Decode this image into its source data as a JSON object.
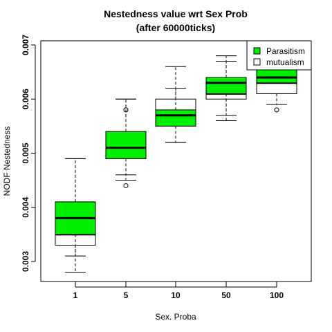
{
  "chart_data": {
    "type": "boxplot",
    "title_line1": "Nestedness value wrt Sex Prob",
    "title_line2": "(after 60000ticks)",
    "xlabel": "Sex. Proba",
    "ylabel": "NODF Nestedness",
    "categories": [
      "1",
      "5",
      "10",
      "50",
      "100"
    ],
    "ylim": [
      0.0026,
      0.0071
    ],
    "yticks": [
      0.003,
      0.004,
      0.005,
      0.006,
      0.007
    ],
    "ytick_labels": [
      "0.003",
      "0.004",
      "0.005",
      "0.006",
      "0.007"
    ],
    "legend": {
      "position": "top-right",
      "entries": [
        "Parasitism",
        "mutualism"
      ]
    },
    "series": [
      {
        "name": "mutualism",
        "color": "#ffffff",
        "boxes": [
          {
            "whisker_low": 0.0031,
            "q1": 0.0033,
            "median": 0.0035,
            "q3": 0.0041,
            "whisker_high": 0.0049,
            "outliers": []
          },
          {
            "whisker_low": 0.0045,
            "q1": 0.0049,
            "median": 0.0051,
            "q3": 0.0054,
            "whisker_high": 0.006,
            "outliers": [
              0.0058,
              0.0044
            ]
          },
          {
            "whisker_low": 0.0052,
            "q1": 0.0055,
            "median": 0.0057,
            "q3": 0.006,
            "whisker_high": 0.0066,
            "outliers": []
          },
          {
            "whisker_low": 0.0057,
            "q1": 0.006,
            "median": 0.0061,
            "q3": 0.0063,
            "whisker_high": 0.0067,
            "outliers": []
          },
          {
            "whisker_low": 0.0059,
            "q1": 0.0061,
            "median": 0.0063,
            "q3": 0.0065,
            "whisker_high": 0.0068,
            "outliers": [
              0.0058
            ]
          }
        ]
      },
      {
        "name": "Parasitism",
        "color": "#00ee00",
        "boxes": [
          {
            "whisker_low": 0.0028,
            "q1": 0.0035,
            "median": 0.0038,
            "q3": 0.0041,
            "whisker_high": 0.0049,
            "outliers": []
          },
          {
            "whisker_low": 0.0046,
            "q1": 0.0049,
            "median": 0.0051,
            "q3": 0.0054,
            "whisker_high": 0.006,
            "outliers": [
              0.0058
            ]
          },
          {
            "whisker_low": 0.0052,
            "q1": 0.0055,
            "median": 0.0057,
            "q3": 0.0058,
            "whisker_high": 0.0062,
            "outliers": []
          },
          {
            "whisker_low": 0.0056,
            "q1": 0.0061,
            "median": 0.0063,
            "q3": 0.0064,
            "whisker_high": 0.0068,
            "outliers": []
          },
          {
            "whisker_low": 0.0063,
            "q1": 0.0063,
            "median": 0.0064,
            "q3": 0.0066,
            "whisker_high": 0.0068,
            "outliers": []
          }
        ]
      }
    ]
  }
}
